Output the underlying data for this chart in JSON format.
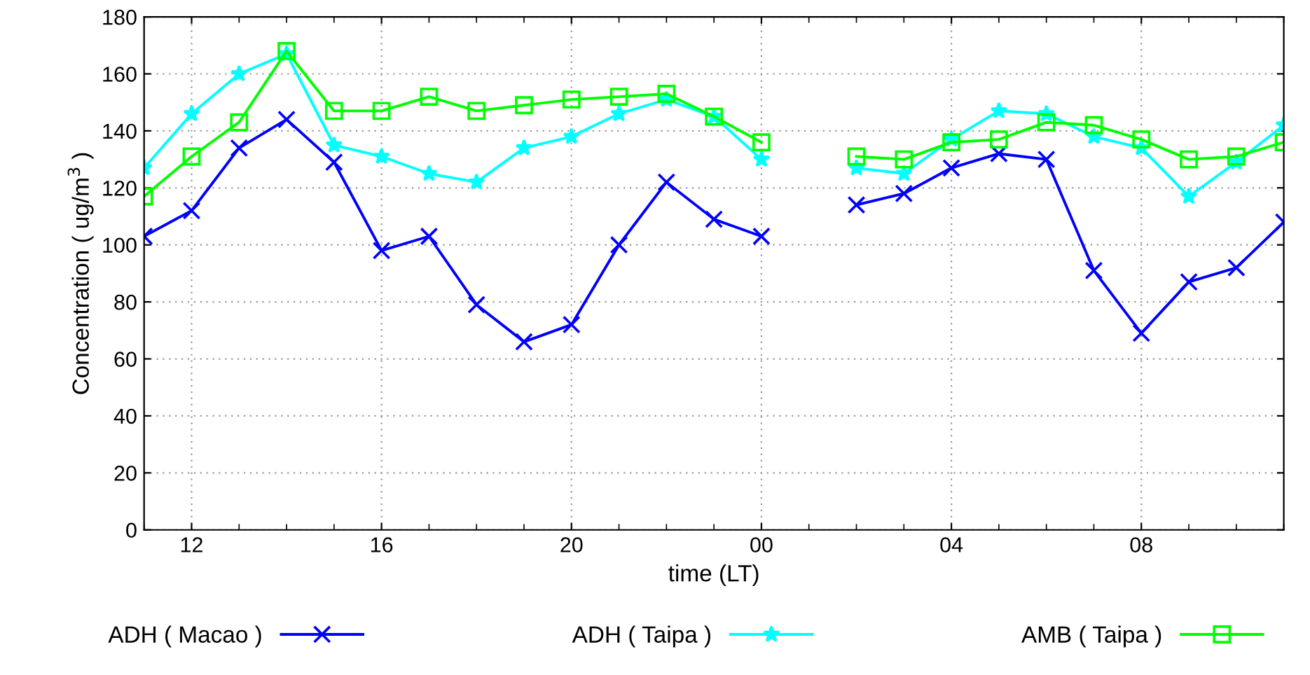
{
  "chart_data": {
    "type": "line",
    "xlabel": "time (LT)",
    "ylabel": "Concentration ( ug/m$^{3}$ )",
    "categories": [
      null,
      "12",
      null,
      null,
      null,
      "16",
      null,
      null,
      null,
      "20",
      null,
      null,
      null,
      "00",
      null,
      null,
      null,
      "04",
      null,
      null,
      null,
      "08",
      null,
      null,
      null
    ],
    "series": [
      {
        "name": "ADH ( Macao )",
        "color": "#0000ff",
        "marker": "cross",
        "values": [
          103,
          112,
          134,
          144,
          129,
          98,
          103,
          79,
          66,
          72,
          100,
          122,
          109,
          103,
          null,
          114,
          118,
          127,
          132,
          130,
          91,
          69,
          87,
          92,
          108
        ]
      },
      {
        "name": "ADH ( Taipa )",
        "color": "#00ffff",
        "marker": "star",
        "values": [
          127,
          146,
          160,
          167,
          135,
          131,
          125,
          122,
          134,
          138,
          146,
          151,
          145,
          130,
          null,
          127,
          125,
          137,
          147,
          146,
          138,
          134,
          117,
          129,
          142
        ]
      },
      {
        "name": "AMB ( Taipa )",
        "color": "#00ff00",
        "marker": "square",
        "values": [
          117,
          131,
          143,
          168,
          147,
          147,
          152,
          147,
          149,
          151,
          152,
          153,
          145,
          136,
          null,
          131,
          130,
          136,
          137,
          143,
          142,
          137,
          130,
          131,
          136
        ]
      }
    ],
    "ylim": [
      0,
      180
    ],
    "yticks": [
      0,
      20,
      40,
      60,
      80,
      100,
      120,
      140,
      160,
      180
    ],
    "grid": true,
    "legend": "bottom",
    "line_style": "solid"
  }
}
